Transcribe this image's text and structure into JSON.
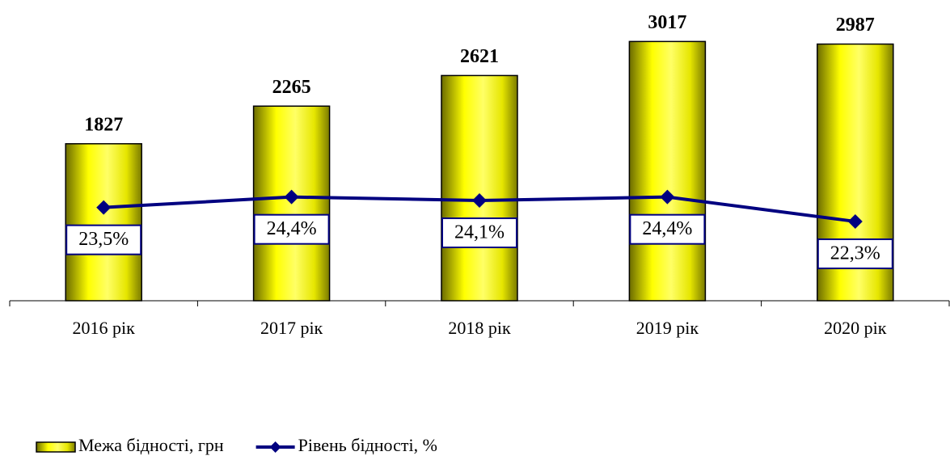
{
  "chart_data": {
    "type": "bar",
    "categories": [
      "2016 рік",
      "2017 рік",
      "2018 рік",
      "2019 рік",
      "2020 рік"
    ],
    "series": [
      {
        "name": "Межа бідності, грн",
        "type": "bar",
        "color": "#ffff00",
        "values": [
          1827,
          2265,
          2621,
          3017,
          2987
        ]
      },
      {
        "name": "Рівень бідності, %",
        "type": "line",
        "axis": "y2",
        "color": "#000080",
        "values": [
          23.5,
          24.4,
          24.1,
          24.4,
          22.3
        ],
        "value_labels": [
          "23,5%",
          "24,4%",
          "24,1%",
          "24,4%",
          "22,3%"
        ]
      }
    ],
    "ylim": [
      0,
      3500
    ],
    "y2lim": [
      15.5,
      41.3
    ],
    "legend": "bottom-left"
  }
}
